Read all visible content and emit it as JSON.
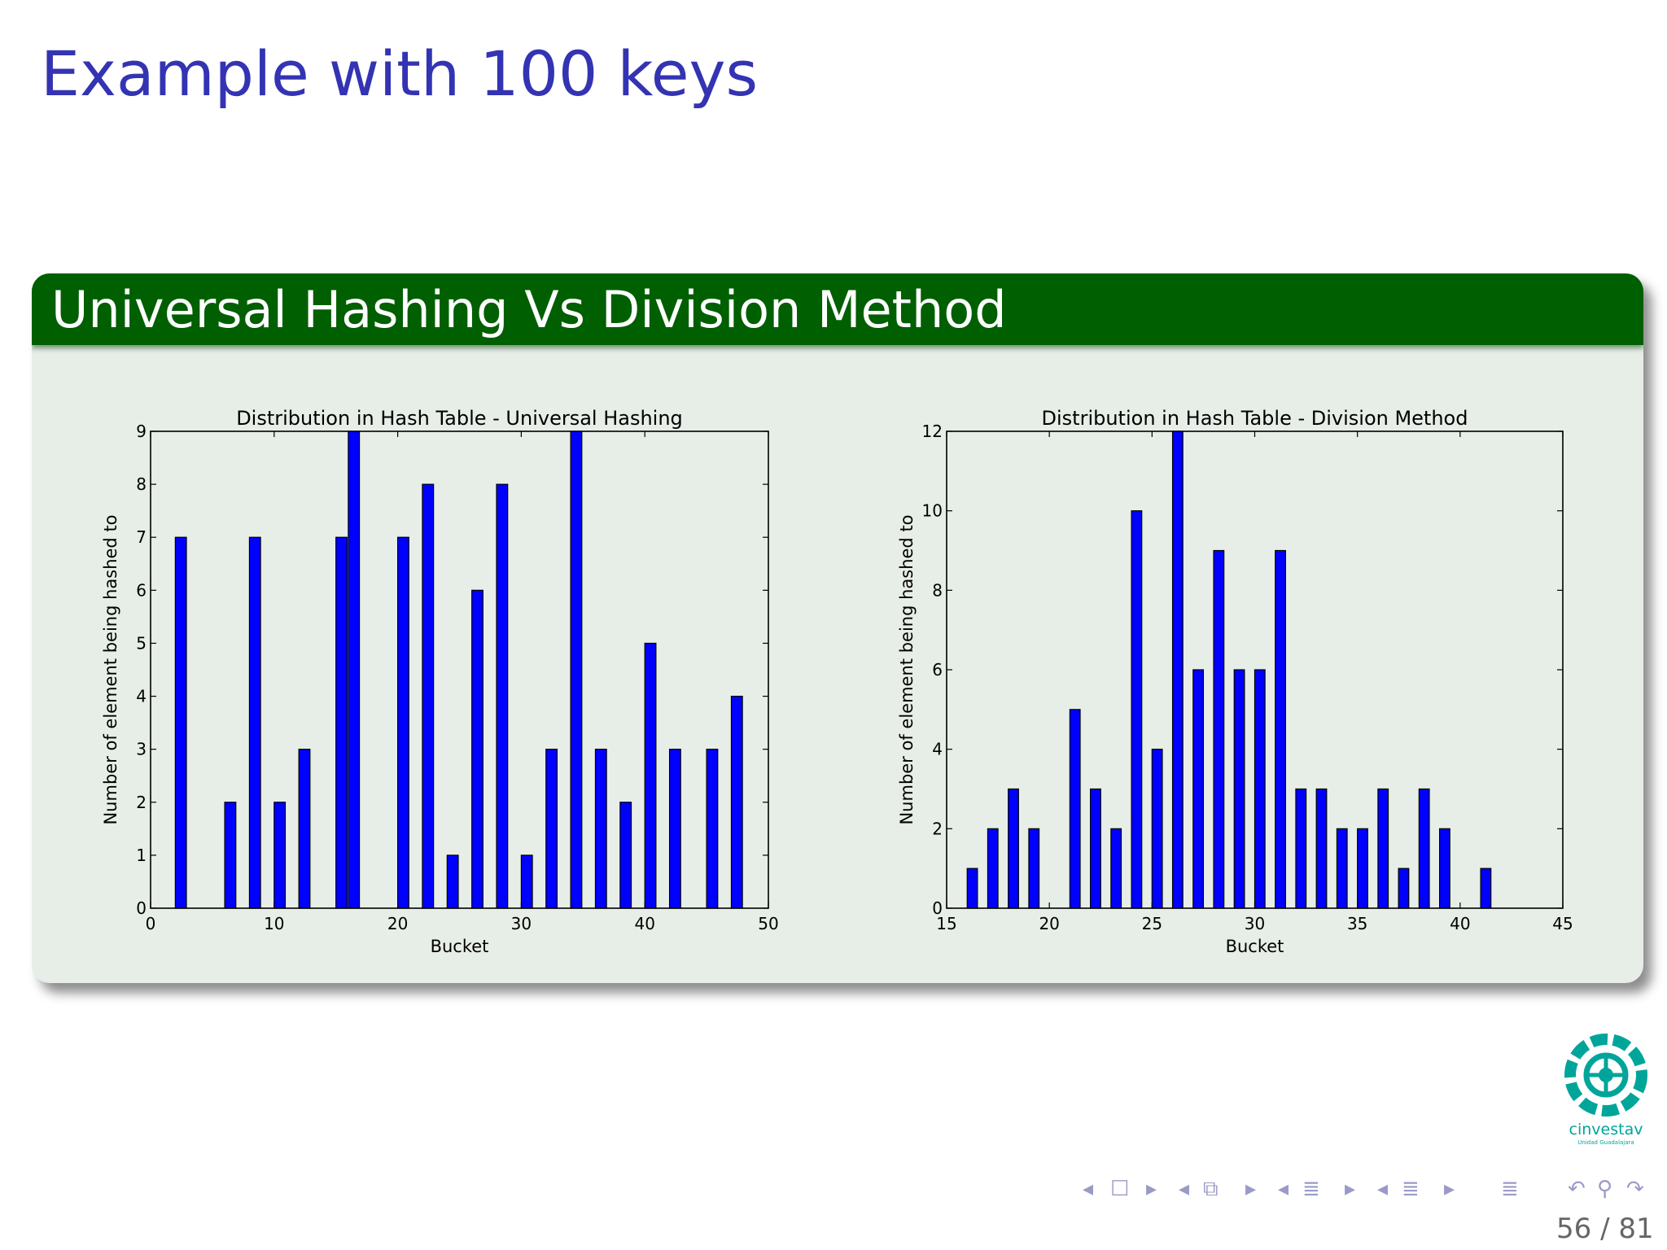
{
  "slide": {
    "title": "Example with 100 keys",
    "block_title": "Universal Hashing Vs Division Method",
    "page_number": "56 / 81",
    "logo_text": "cinvestav",
    "logo_subtext": "Unidad Guadalajara"
  },
  "colors": {
    "title": "#3333b3",
    "block_header": "#005f00",
    "block_body": "#e7ede7",
    "bar": "#0000ff",
    "logo": "#00a59a"
  },
  "nav_icons": [
    "nav-prev-arrow",
    "nav-frame-icon",
    "nav-next-arrow",
    "nav-prev-arrow",
    "nav-subsection-icon",
    "nav-next-arrow",
    "nav-prev-arrow",
    "nav-section-icon",
    "nav-next-arrow",
    "nav-prev-arrow",
    "nav-presentation-icon",
    "nav-next-arrow",
    "nav-toc-icon",
    "nav-back-icon",
    "nav-search-icon",
    "nav-forward-icon"
  ],
  "chart_data": [
    {
      "type": "bar",
      "title": "Distribution in Hash Table - Universal Hashing",
      "xlabel": "Bucket",
      "ylabel": "Number of element being hashed to",
      "xlim": [
        0,
        50
      ],
      "ylim": [
        0,
        9
      ],
      "xticks": [
        0,
        10,
        20,
        30,
        40,
        50
      ],
      "yticks": [
        0,
        1,
        2,
        3,
        4,
        5,
        6,
        7,
        8,
        9
      ],
      "bar_width": 0.9,
      "grid": false,
      "x": [
        2,
        6,
        8,
        10,
        12,
        15,
        16,
        20,
        22,
        24,
        26,
        28,
        30,
        32,
        34,
        36,
        38,
        40,
        42,
        45,
        47
      ],
      "values": [
        7,
        2,
        7,
        2,
        3,
        7,
        9,
        7,
        8,
        1,
        6,
        8,
        1,
        3,
        9,
        3,
        2,
        5,
        3,
        3,
        4
      ]
    },
    {
      "type": "bar",
      "title": "Distribution in Hash Table - Division Method",
      "xlabel": "Bucket",
      "ylabel": "Number of element being hashed to",
      "xlim": [
        15,
        45
      ],
      "ylim": [
        0,
        12
      ],
      "xticks": [
        15,
        20,
        25,
        30,
        35,
        40,
        45
      ],
      "yticks": [
        0,
        2,
        4,
        6,
        8,
        10,
        12
      ],
      "bar_width": 0.5,
      "grid": false,
      "x": [
        16,
        17,
        18,
        19,
        21,
        22,
        23,
        24,
        25,
        26,
        27,
        28,
        29,
        30,
        31,
        32,
        33,
        34,
        35,
        36,
        37,
        38,
        39,
        41
      ],
      "values": [
        1,
        2,
        3,
        2,
        5,
        3,
        2,
        10,
        4,
        12,
        6,
        9,
        6,
        6,
        9,
        3,
        3,
        2,
        2,
        3,
        1,
        3,
        2,
        1
      ]
    }
  ]
}
